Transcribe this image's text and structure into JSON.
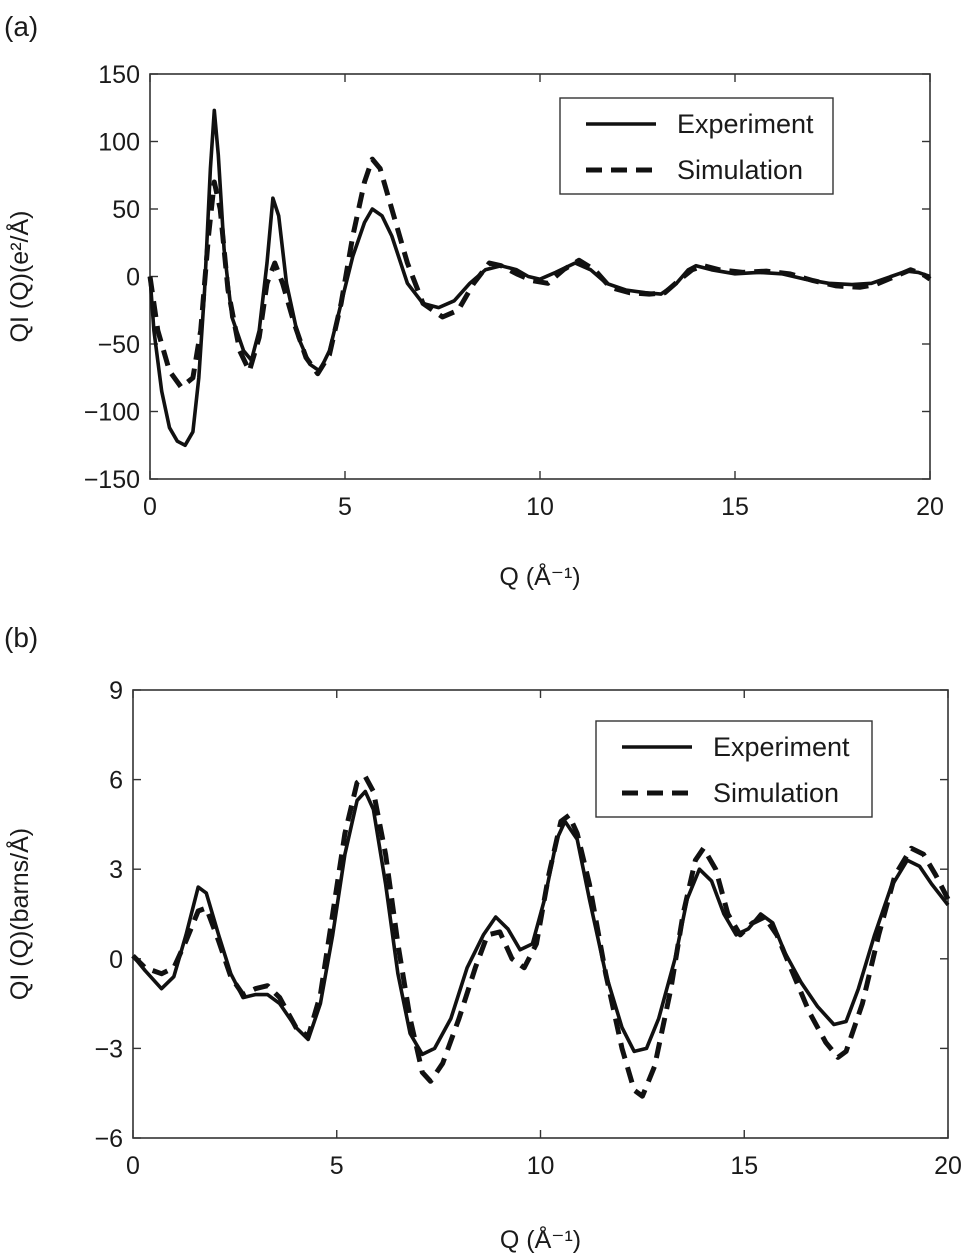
{
  "chart_data": [
    {
      "panel_label": "(a)",
      "type": "line",
      "ylabel": "QI (Q)(e²/Å)",
      "xlabel": "Q (Å⁻¹)",
      "xlim": [
        0,
        20
      ],
      "ylim": [
        -150,
        150
      ],
      "xticks": [
        0,
        5,
        10,
        15,
        20
      ],
      "xtick_labels": [
        "0",
        "5",
        "10",
        "15",
        "20"
      ],
      "yticks": [
        -150,
        -100,
        -50,
        0,
        50,
        100,
        150
      ],
      "ytick_labels": [
        "−150",
        "−100",
        "−50",
        "0",
        "50",
        "100",
        "150"
      ],
      "legend_position": "top-right",
      "series": [
        {
          "name": "Experiment",
          "style": "solid",
          "points": [
            [
              0,
              0
            ],
            [
              0.1,
              -40
            ],
            [
              0.3,
              -85
            ],
            [
              0.5,
              -112
            ],
            [
              0.7,
              -122
            ],
            [
              0.9,
              -125
            ],
            [
              1.1,
              -115
            ],
            [
              1.25,
              -75
            ],
            [
              1.4,
              -10
            ],
            [
              1.55,
              80
            ],
            [
              1.65,
              123
            ],
            [
              1.75,
              90
            ],
            [
              1.9,
              20
            ],
            [
              2.1,
              -30
            ],
            [
              2.4,
              -55
            ],
            [
              2.6,
              -62
            ],
            [
              2.8,
              -40
            ],
            [
              3.0,
              10
            ],
            [
              3.15,
              58
            ],
            [
              3.3,
              45
            ],
            [
              3.5,
              -5
            ],
            [
              3.8,
              -45
            ],
            [
              4.1,
              -65
            ],
            [
              4.35,
              -70
            ],
            [
              4.6,
              -55
            ],
            [
              4.9,
              -20
            ],
            [
              5.2,
              15
            ],
            [
              5.5,
              40
            ],
            [
              5.7,
              50
            ],
            [
              5.95,
              45
            ],
            [
              6.2,
              30
            ],
            [
              6.6,
              -5
            ],
            [
              7.0,
              -20
            ],
            [
              7.4,
              -23
            ],
            [
              7.8,
              -18
            ],
            [
              8.2,
              -5
            ],
            [
              8.6,
              5
            ],
            [
              9.0,
              8
            ],
            [
              9.4,
              5
            ],
            [
              9.7,
              0
            ],
            [
              10.0,
              -2
            ],
            [
              10.4,
              3
            ],
            [
              10.9,
              10
            ],
            [
              11.3,
              5
            ],
            [
              11.7,
              -5
            ],
            [
              12.2,
              -10
            ],
            [
              12.7,
              -12
            ],
            [
              13.1,
              -13
            ],
            [
              13.5,
              -5
            ],
            [
              13.8,
              5
            ],
            [
              14.0,
              8
            ],
            [
              14.4,
              5
            ],
            [
              15.0,
              2
            ],
            [
              15.6,
              3
            ],
            [
              16.2,
              2
            ],
            [
              16.8,
              -2
            ],
            [
              17.4,
              -5
            ],
            [
              18.0,
              -6
            ],
            [
              18.5,
              -5
            ],
            [
              19.0,
              0
            ],
            [
              19.4,
              4
            ],
            [
              19.7,
              3
            ],
            [
              20,
              0
            ]
          ]
        },
        {
          "name": "Simulation",
          "style": "dashed",
          "points": [
            [
              0,
              0
            ],
            [
              0.2,
              -40
            ],
            [
              0.5,
              -70
            ],
            [
              0.8,
              -82
            ],
            [
              1.1,
              -75
            ],
            [
              1.3,
              -40
            ],
            [
              1.5,
              30
            ],
            [
              1.65,
              70
            ],
            [
              1.8,
              50
            ],
            [
              2.0,
              -10
            ],
            [
              2.3,
              -55
            ],
            [
              2.55,
              -70
            ],
            [
              2.8,
              -45
            ],
            [
              3.0,
              -5
            ],
            [
              3.2,
              10
            ],
            [
              3.4,
              -5
            ],
            [
              3.7,
              -35
            ],
            [
              4.0,
              -60
            ],
            [
              4.3,
              -72
            ],
            [
              4.6,
              -58
            ],
            [
              4.9,
              -20
            ],
            [
              5.2,
              30
            ],
            [
              5.5,
              70
            ],
            [
              5.7,
              87
            ],
            [
              5.9,
              80
            ],
            [
              6.2,
              50
            ],
            [
              6.6,
              10
            ],
            [
              7.0,
              -20
            ],
            [
              7.5,
              -30
            ],
            [
              7.9,
              -25
            ],
            [
              8.3,
              -5
            ],
            [
              8.7,
              10
            ],
            [
              9.0,
              8
            ],
            [
              9.4,
              2
            ],
            [
              9.8,
              -3
            ],
            [
              10.2,
              -5
            ],
            [
              10.6,
              5
            ],
            [
              11.0,
              12
            ],
            [
              11.4,
              5
            ],
            [
              11.8,
              -8
            ],
            [
              12.3,
              -12
            ],
            [
              12.8,
              -13
            ],
            [
              13.2,
              -12
            ],
            [
              13.6,
              -2
            ],
            [
              13.9,
              5
            ],
            [
              14.2,
              8
            ],
            [
              14.6,
              5
            ],
            [
              15.2,
              3
            ],
            [
              15.8,
              4
            ],
            [
              16.4,
              2
            ],
            [
              17.0,
              -3
            ],
            [
              17.6,
              -7
            ],
            [
              18.2,
              -8
            ],
            [
              18.6,
              -6
            ],
            [
              19.1,
              0
            ],
            [
              19.5,
              5
            ],
            [
              19.8,
              2
            ],
            [
              20,
              -2
            ]
          ]
        }
      ]
    },
    {
      "panel_label": "(b)",
      "type": "line",
      "ylabel": "QI (Q)(barns/Å)",
      "xlabel": "Q (Å⁻¹)",
      "xlim": [
        0,
        20
      ],
      "ylim": [
        -6,
        9
      ],
      "xticks": [
        0,
        5,
        10,
        15,
        20
      ],
      "xtick_labels": [
        "0",
        "5",
        "10",
        "15",
        "20"
      ],
      "yticks": [
        -6,
        -3,
        0,
        3,
        6,
        9
      ],
      "ytick_labels": [
        "−6",
        "−3",
        "0",
        "3",
        "6",
        "9"
      ],
      "legend_position": "top-right",
      "series": [
        {
          "name": "Experiment",
          "style": "solid",
          "points": [
            [
              0,
              0.1
            ],
            [
              0.3,
              -0.4
            ],
            [
              0.7,
              -1.0
            ],
            [
              1.0,
              -0.6
            ],
            [
              1.3,
              0.8
            ],
            [
              1.6,
              2.4
            ],
            [
              1.8,
              2.2
            ],
            [
              2.1,
              0.8
            ],
            [
              2.4,
              -0.5
            ],
            [
              2.7,
              -1.3
            ],
            [
              3.0,
              -1.2
            ],
            [
              3.3,
              -1.2
            ],
            [
              3.6,
              -1.5
            ],
            [
              4.0,
              -2.3
            ],
            [
              4.3,
              -2.7
            ],
            [
              4.6,
              -1.5
            ],
            [
              4.9,
              0.8
            ],
            [
              5.2,
              3.5
            ],
            [
              5.5,
              5.3
            ],
            [
              5.7,
              5.6
            ],
            [
              5.9,
              5.0
            ],
            [
              6.2,
              2.5
            ],
            [
              6.5,
              -0.5
            ],
            [
              6.8,
              -2.5
            ],
            [
              7.1,
              -3.2
            ],
            [
              7.4,
              -3.0
            ],
            [
              7.8,
              -2.0
            ],
            [
              8.2,
              -0.3
            ],
            [
              8.6,
              0.8
            ],
            [
              8.9,
              1.4
            ],
            [
              9.2,
              1.0
            ],
            [
              9.5,
              0.3
            ],
            [
              9.8,
              0.5
            ],
            [
              10.1,
              2.0
            ],
            [
              10.4,
              4.0
            ],
            [
              10.6,
              4.6
            ],
            [
              10.9,
              4.0
            ],
            [
              11.2,
              2.0
            ],
            [
              11.6,
              -0.5
            ],
            [
              12.0,
              -2.3
            ],
            [
              12.3,
              -3.1
            ],
            [
              12.6,
              -3.0
            ],
            [
              12.9,
              -2.0
            ],
            [
              13.3,
              0.0
            ],
            [
              13.6,
              2.0
            ],
            [
              13.9,
              3.0
            ],
            [
              14.2,
              2.6
            ],
            [
              14.5,
              1.5
            ],
            [
              14.8,
              0.8
            ],
            [
              15.1,
              1.0
            ],
            [
              15.4,
              1.5
            ],
            [
              15.7,
              1.2
            ],
            [
              16.0,
              0.2
            ],
            [
              16.4,
              -0.8
            ],
            [
              16.8,
              -1.6
            ],
            [
              17.2,
              -2.2
            ],
            [
              17.5,
              -2.1
            ],
            [
              17.8,
              -1.0
            ],
            [
              18.2,
              0.8
            ],
            [
              18.6,
              2.4
            ],
            [
              19.0,
              3.3
            ],
            [
              19.3,
              3.1
            ],
            [
              19.6,
              2.5
            ],
            [
              20,
              1.8
            ]
          ]
        },
        {
          "name": "Simulation",
          "style": "dashed",
          "points": [
            [
              0,
              0.1
            ],
            [
              0.3,
              -0.3
            ],
            [
              0.7,
              -0.5
            ],
            [
              1.0,
              -0.3
            ],
            [
              1.3,
              0.6
            ],
            [
              1.6,
              1.6
            ],
            [
              1.8,
              1.7
            ],
            [
              2.1,
              0.6
            ],
            [
              2.4,
              -0.6
            ],
            [
              2.7,
              -1.2
            ],
            [
              3.0,
              -1.0
            ],
            [
              3.3,
              -0.9
            ],
            [
              3.6,
              -1.3
            ],
            [
              4.0,
              -2.3
            ],
            [
              4.3,
              -2.6
            ],
            [
              4.6,
              -1.2
            ],
            [
              4.9,
              1.5
            ],
            [
              5.2,
              4.2
            ],
            [
              5.5,
              5.9
            ],
            [
              5.7,
              6.1
            ],
            [
              5.9,
              5.6
            ],
            [
              6.2,
              3.5
            ],
            [
              6.5,
              0.5
            ],
            [
              6.8,
              -2.0
            ],
            [
              7.1,
              -3.8
            ],
            [
              7.3,
              -4.1
            ],
            [
              7.6,
              -3.5
            ],
            [
              8.0,
              -2.0
            ],
            [
              8.4,
              -0.3
            ],
            [
              8.7,
              0.8
            ],
            [
              9.0,
              0.9
            ],
            [
              9.3,
              0.0
            ],
            [
              9.6,
              -0.3
            ],
            [
              9.9,
              0.5
            ],
            [
              10.2,
              2.8
            ],
            [
              10.5,
              4.6
            ],
            [
              10.7,
              4.8
            ],
            [
              10.9,
              4.2
            ],
            [
              11.2,
              2.5
            ],
            [
              11.6,
              -0.5
            ],
            [
              12.0,
              -3.0
            ],
            [
              12.3,
              -4.4
            ],
            [
              12.5,
              -4.6
            ],
            [
              12.8,
              -3.6
            ],
            [
              13.2,
              -1.0
            ],
            [
              13.5,
              1.5
            ],
            [
              13.8,
              3.3
            ],
            [
              14.0,
              3.7
            ],
            [
              14.3,
              3.0
            ],
            [
              14.6,
              1.5
            ],
            [
              14.9,
              0.8
            ],
            [
              15.2,
              1.2
            ],
            [
              15.5,
              1.4
            ],
            [
              15.8,
              0.8
            ],
            [
              16.2,
              -0.5
            ],
            [
              16.6,
              -1.8
            ],
            [
              17.0,
              -2.8
            ],
            [
              17.3,
              -3.3
            ],
            [
              17.5,
              -3.1
            ],
            [
              17.9,
              -1.5
            ],
            [
              18.3,
              0.8
            ],
            [
              18.7,
              2.8
            ],
            [
              19.1,
              3.7
            ],
            [
              19.4,
              3.5
            ],
            [
              19.7,
              2.8
            ],
            [
              20,
              2.0
            ]
          ]
        }
      ]
    }
  ]
}
